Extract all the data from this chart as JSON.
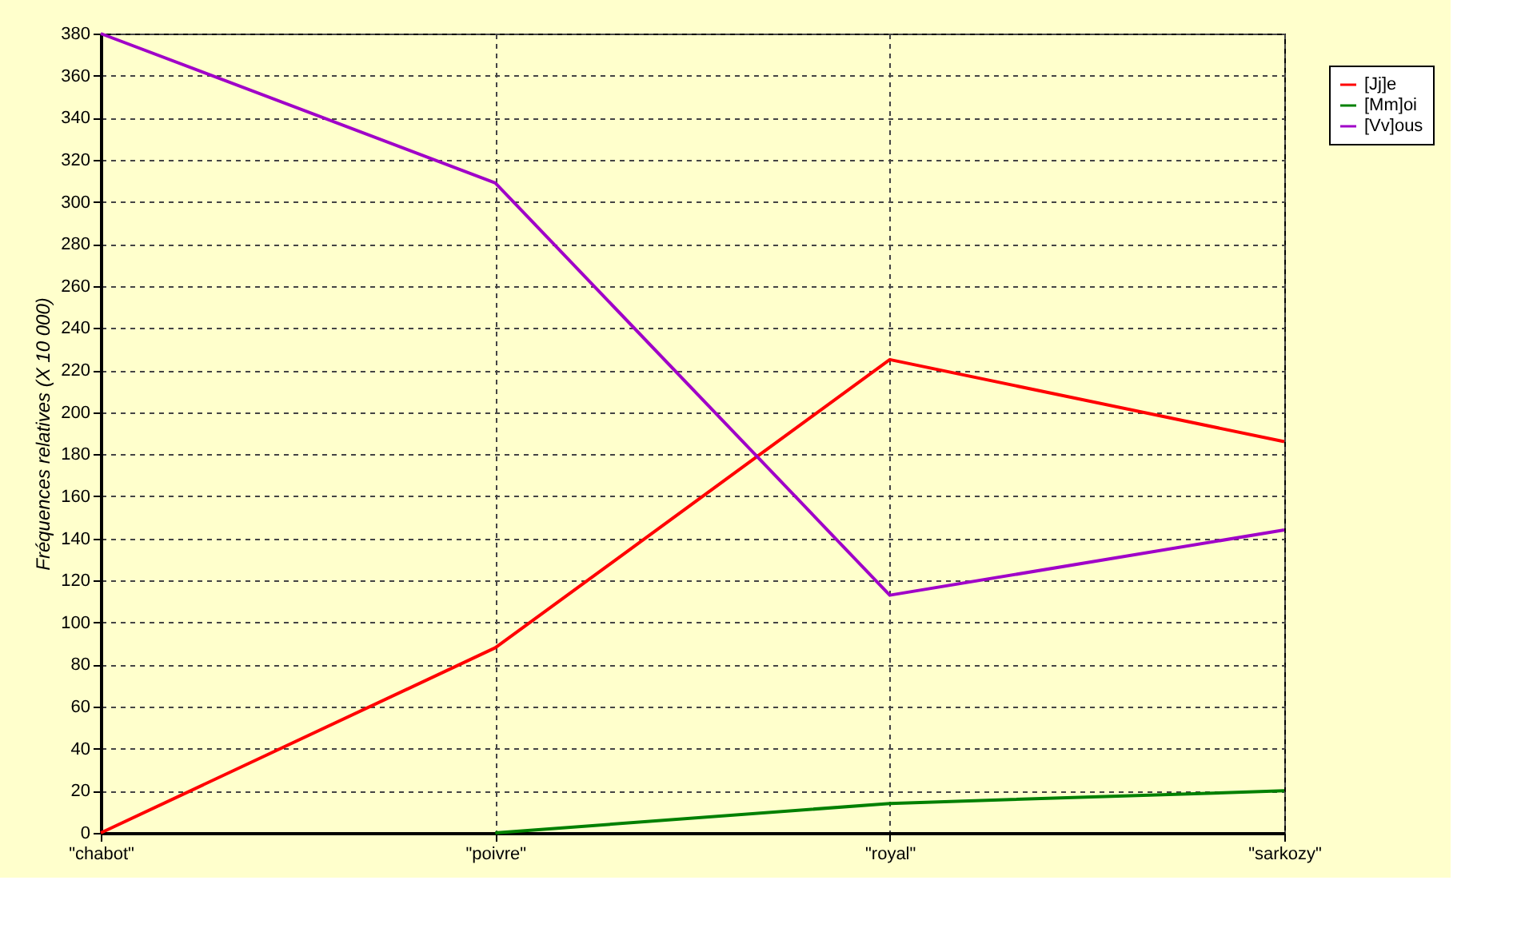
{
  "chart_data": {
    "type": "line",
    "ylabel": "Fréquences relatives (X 10 000)",
    "categories": [
      "\"chabot\"",
      "\"poivre\"",
      "\"royal\"",
      "\"sarkozy\""
    ],
    "series": [
      {
        "name": "[Jj]e",
        "color": "#ff0000",
        "values": [
          0,
          88,
          225,
          186
        ]
      },
      {
        "name": "[Mm]oi",
        "color": "#008000",
        "values": [
          null,
          0,
          14,
          20
        ]
      },
      {
        "name": "[Vv]ous",
        "color": "#a000c8",
        "values": [
          380,
          309,
          113,
          144
        ]
      }
    ],
    "ylim": [
      0,
      380
    ],
    "yticks": [
      0,
      20,
      40,
      60,
      80,
      100,
      120,
      140,
      160,
      180,
      200,
      220,
      240,
      260,
      280,
      300,
      320,
      340,
      360,
      380
    ],
    "grid": true,
    "legend": "top right",
    "marker": "none",
    "line_style": "solid"
  }
}
